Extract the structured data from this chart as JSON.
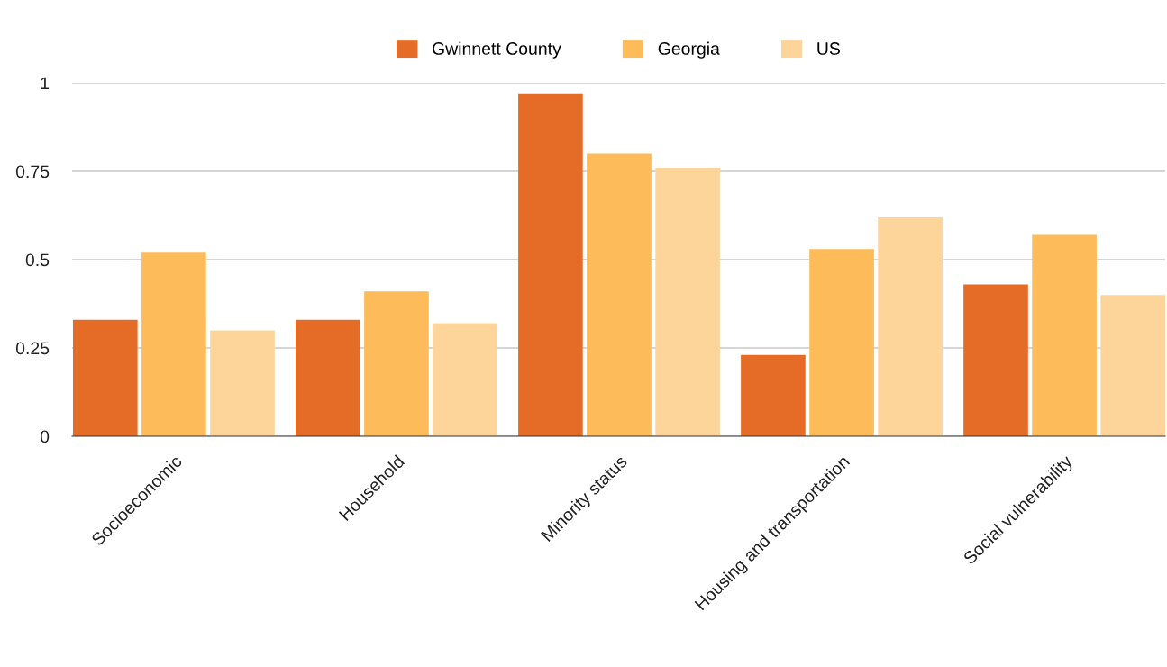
{
  "chart_data": {
    "type": "bar",
    "categories": [
      "Socioeconomic",
      "Household",
      "Minority status",
      "Housing and transportation",
      "Social vulnerability"
    ],
    "series": [
      {
        "name": "Gwinnett County",
        "color": "#e46c26",
        "values": [
          0.33,
          0.33,
          0.97,
          0.23,
          0.43
        ]
      },
      {
        "name": "Georgia",
        "color": "#fdbb5a",
        "values": [
          0.52,
          0.41,
          0.8,
          0.53,
          0.57
        ]
      },
      {
        "name": "US",
        "color": "#fdd59a",
        "values": [
          0.3,
          0.32,
          0.76,
          0.62,
          0.4
        ]
      }
    ],
    "ylim": [
      0,
      1
    ],
    "yticks": [
      0,
      {
        "value": 0.25,
        "label": "0.25"
      },
      {
        "value": 0.5,
        "label": "0.5"
      },
      {
        "value": 0.75,
        "label": "0.75"
      },
      1
    ],
    "grid": "y",
    "legend": "top"
  }
}
